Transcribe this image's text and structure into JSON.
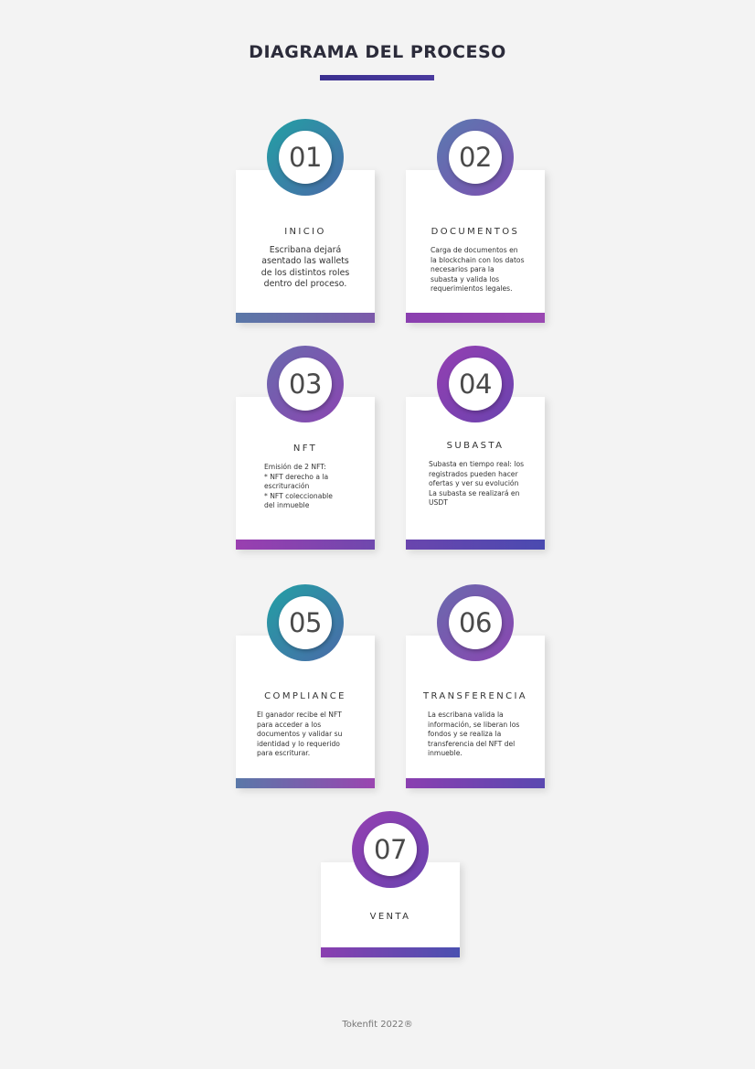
{
  "title": "DIAGRAMA DEL PROCESO",
  "steps": [
    {
      "number": "01",
      "heading": "INICIO",
      "description": "Escribana dejará\nasentado las wallets\nde los distintos roles\ndentro del proceso."
    },
    {
      "number": "02",
      "heading": "DOCUMENTOS",
      "description": "Carga de documentos en\nla blockchain con los datos\nnecesarios para la\nsubasta y valida los\nrequerimientos legales."
    },
    {
      "number": "03",
      "heading": "NFT",
      "description": "Emisión de 2 NFT:\n* NFT derecho a la\nescrituración\n * NFT coleccionable\ndel inmueble"
    },
    {
      "number": "04",
      "heading": "SUBASTA",
      "description": "Subasta en tiempo real:  los\nregistrados pueden hacer\nofertas y ver su evolución\nLa subasta se realizará en\nUSDT"
    },
    {
      "number": "05",
      "heading": "COMPLIANCE",
      "description": "El ganador recibe el NFT\npara acceder a los\ndocumentos y validar su\nidentidad y lo requerido\npara escriturar."
    },
    {
      "number": "06",
      "heading": "TRANSFERENCIA",
      "description": "La escribana valida la\ninformación, se liberan los\nfondos y se realiza la\ntransferencia del NFT del\ninmueble."
    },
    {
      "number": "07",
      "heading": "VENTA",
      "description": ""
    }
  ],
  "footer": "Tokenfit 2022®",
  "colors": {
    "teal": "#2a9aa5",
    "blue_violet": "#5f6fae",
    "violet": "#7b4fae",
    "purple": "#8e3fb0",
    "indigo": "#4a4aa8"
  }
}
